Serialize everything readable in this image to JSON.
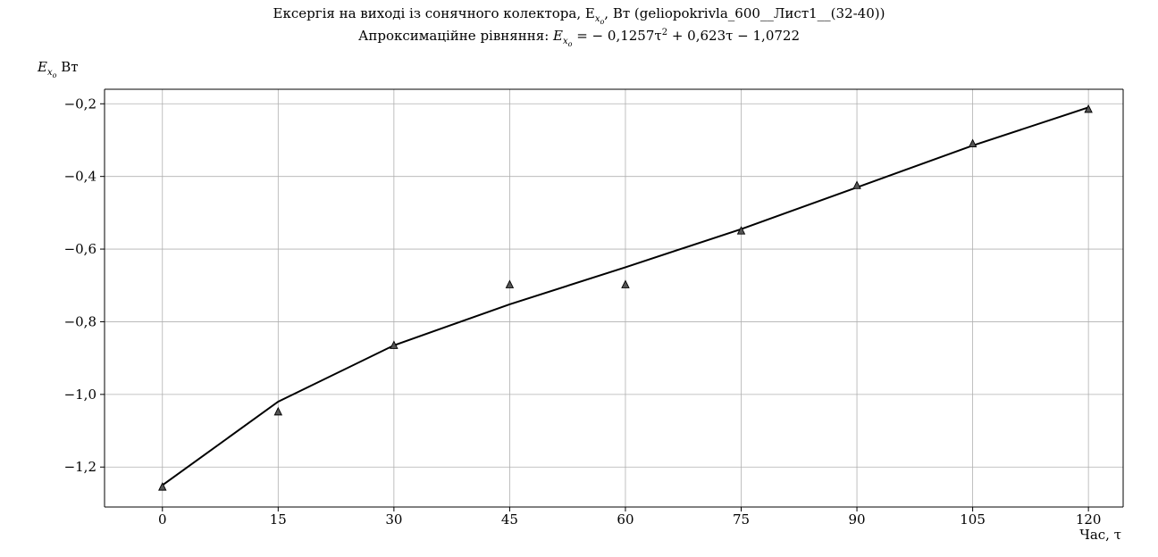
{
  "chart_data": {
    "type": "line",
    "title": "Ексергія на виході із сонячного колектора, E_{x_o}, Вт (geliopokrivla_600__Лист1__(32-40))",
    "title_line1": "Ексергія на виході із сонячного колектора, E",
    "title_line1_sub": "x",
    "title_line1_subsub": "o",
    "title_line1_tail": ", Вт (geliopokrivla_600__Лист1__(32-40))",
    "subtitle": "Апроксимаційне рівняння: E_{x_o} = −0,1257τ² + 0,623τ − 1,0722",
    "subtitle_prefix": "Апроксимаційне рівняння: ",
    "subtitle_var": "E",
    "subtitle_sub": "x",
    "subtitle_subsub": "o",
    "subtitle_eq": " = − 0,1257τ",
    "subtitle_pow": "2",
    "subtitle_tail": " + 0,623τ − 1,0722",
    "ylabel": "E_{x_o} Вт",
    "ylabel_var": "E",
    "ylabel_sub": "x",
    "ylabel_subsub": "o",
    "ylabel_unit": " Вт",
    "xlabel": "Час, τ",
    "x_ticks": [
      0,
      15,
      30,
      45,
      60,
      75,
      90,
      105,
      120
    ],
    "x_tick_labels": [
      "0",
      "15",
      "30",
      "45",
      "60",
      "75",
      "90",
      "105",
      "120"
    ],
    "y_ticks": [
      -1.2,
      -1.0,
      -0.8,
      -0.6,
      -0.4,
      -0.2
    ],
    "y_tick_labels": [
      "−1,2",
      "−1,0",
      "−0,8",
      "−0,6",
      "−0,4",
      "−0,2"
    ],
    "xlim": [
      -7.5,
      124.5
    ],
    "ylim": [
      -1.31,
      -0.16
    ],
    "grid": true,
    "series": [
      {
        "kind": "scatter",
        "marker": "triangle",
        "color": "#555555",
        "x": [
          0,
          15,
          30,
          45,
          60,
          75,
          90,
          105,
          120
        ],
        "y": [
          -1.255,
          -1.048,
          -0.865,
          -0.698,
          -0.698,
          -0.55,
          -0.425,
          -0.31,
          -0.215
        ]
      },
      {
        "kind": "line",
        "color": "#000000",
        "x": [
          0,
          15,
          30,
          45,
          60,
          75,
          90,
          105,
          120
        ],
        "y": [
          -1.25,
          -1.02,
          -0.865,
          -0.752,
          -0.65,
          -0.545,
          -0.43,
          -0.315,
          -0.21
        ]
      }
    ]
  }
}
